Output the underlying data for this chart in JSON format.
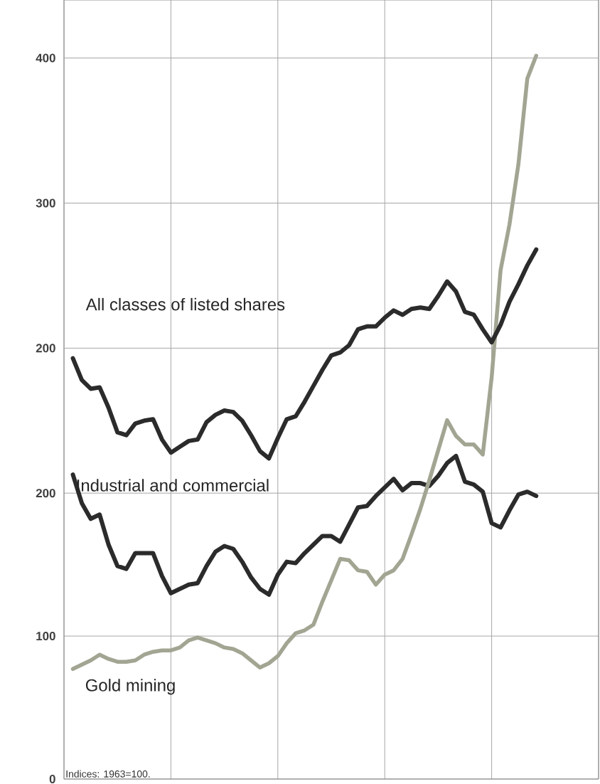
{
  "chart_data": {
    "type": "line",
    "categories": [
      null,
      null,
      null,
      null,
      null,
      null,
      null,
      null,
      null,
      null,
      null,
      null,
      null,
      null,
      null,
      null,
      null,
      null,
      null,
      null,
      null,
      null,
      null,
      null,
      null,
      null,
      null,
      null,
      null,
      null,
      null,
      null,
      null,
      null,
      null,
      null,
      null,
      null,
      null,
      null,
      null,
      null,
      null,
      null,
      null,
      null,
      null,
      null,
      null,
      null,
      null,
      null,
      null
    ],
    "series": [
      {
        "name": "All classes of listed shares",
        "color": "#2b2b2b",
        "axis": "y2",
        "values": [
          193,
          178,
          172,
          173,
          159,
          142,
          140,
          148,
          150,
          151,
          137,
          128,
          132,
          136,
          137,
          149,
          154,
          157,
          156,
          150,
          140,
          129,
          124,
          138,
          151,
          153,
          163,
          174,
          185,
          195,
          197,
          202,
          213,
          215,
          215,
          221,
          226,
          223,
          227,
          228,
          227,
          236,
          246,
          239,
          225,
          223,
          213,
          204,
          216,
          232,
          244,
          257,
          268
        ]
      },
      {
        "name": "Industrial and commercial",
        "color": "#2b2b2b",
        "values": [
          213,
          193,
          182,
          185,
          164,
          149,
          147,
          158,
          158,
          158,
          142,
          130,
          133,
          136,
          137,
          149,
          159,
          163,
          161,
          152,
          141,
          133,
          129,
          143,
          152,
          151,
          158,
          164,
          170,
          170,
          166,
          178,
          190,
          191,
          198,
          204,
          210,
          202,
          207,
          207,
          205,
          212,
          221,
          226,
          208,
          206,
          201,
          179,
          176,
          188,
          199,
          201,
          198
        ]
      },
      {
        "name": "Gold mining",
        "color": "#a3a593",
        "values": [
          77,
          80,
          83,
          87,
          84,
          82,
          82,
          83,
          87,
          89,
          90,
          90,
          92,
          97,
          99,
          97,
          95,
          92,
          91,
          88,
          83,
          78,
          81,
          86,
          95,
          102,
          104,
          108,
          124,
          139,
          154,
          153,
          146,
          145,
          136,
          143,
          146,
          154,
          171,
          189,
          209,
          230,
          251,
          240,
          234,
          234,
          227,
          281,
          356,
          388,
          430,
          490,
          506
        ]
      }
    ],
    "ylim": [
      0,
      545
    ],
    "yticks": [
      0,
      100,
      200
    ],
    "y2lim": [
      -97,
      440
    ],
    "y2ticks": [
      200,
      300,
      400
    ],
    "grid": true,
    "tick_labels": "y",
    "annotations": [
      "Indices: 1963=100."
    ]
  }
}
